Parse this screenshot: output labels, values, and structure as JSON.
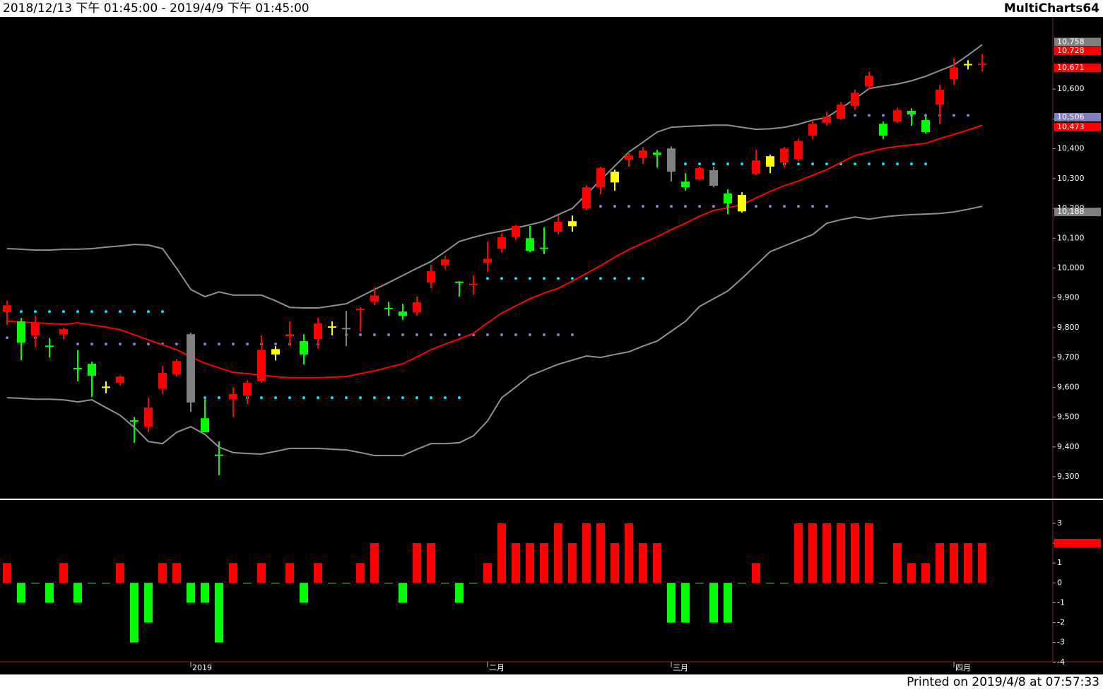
{
  "header": {
    "range": "2018/12/13 下午 01:45:00 - 2019/4/9 下午 01:45:00",
    "brand": "MultiCharts64"
  },
  "footer": "Printed on 2019/4/8 at 07:57:33",
  "chart_data": [
    {
      "type": "candlestick",
      "categories": [
        null,
        null,
        null,
        null,
        null,
        null,
        null,
        null,
        null,
        null,
        null,
        null,
        null,
        "2019",
        null,
        null,
        null,
        null,
        null,
        null,
        null,
        null,
        null,
        null,
        null,
        null,
        null,
        null,
        null,
        null,
        null,
        null,
        null,
        null,
        "二月",
        null,
        null,
        null,
        null,
        null,
        null,
        null,
        null,
        null,
        null,
        null,
        null,
        "三月",
        null,
        null,
        null,
        null,
        null,
        null,
        null,
        null,
        null,
        null,
        null,
        null,
        null,
        null,
        null,
        null,
        null,
        null,
        null,
        "四月",
        null,
        null
      ],
      "open": [
        9852,
        9821,
        9774,
        9740,
        9778,
        9665,
        9679,
        9600,
        9615,
        9487,
        9467,
        9595,
        9643,
        9778,
        9496,
        9372,
        9560,
        9572,
        9620,
        9710,
        9771,
        9755,
        9762,
        9800,
        9797,
        9858,
        9887,
        9864,
        9854,
        9851,
        9951,
        10010,
        9952,
        9942,
        10017,
        10065,
        10105,
        10100,
        10066,
        10122,
        10140,
        10200,
        10271,
        10287,
        10363,
        10370,
        10387,
        10401,
        10290,
        10297,
        10328,
        10250,
        10245,
        10316,
        10340,
        10354,
        10366,
        10444,
        10486,
        10501,
        10543,
        10609,
        10484,
        10491,
        10527,
        10496,
        10548,
        10633,
        10680,
        10681
      ],
      "high": [
        9891,
        9833,
        9840,
        9765,
        9800,
        9725,
        9686,
        9620,
        9640,
        9500,
        9565,
        9672,
        9695,
        9783,
        9560,
        9418,
        9600,
        9624,
        9774,
        9738,
        9821,
        9778,
        9833,
        9821,
        9856,
        9868,
        9935,
        9887,
        9880,
        9904,
        10010,
        10041,
        9956,
        9975,
        10089,
        10117,
        10145,
        10141,
        10136,
        10176,
        10176,
        10278,
        10340,
        10330,
        10389,
        10406,
        10396,
        10408,
        10318,
        10340,
        10340,
        10264,
        10254,
        10396,
        10380,
        10406,
        10434,
        10496,
        10524,
        10557,
        10598,
        10659,
        10491,
        10538,
        10536,
        10512,
        10614,
        10704,
        10697,
        10718
      ],
      "low": [
        9809,
        9691,
        9735,
        9700,
        9760,
        9620,
        9567,
        9580,
        9605,
        9414,
        9449,
        9577,
        9636,
        9518,
        9449,
        9305,
        9501,
        9544,
        9615,
        9690,
        9738,
        9676,
        9731,
        9774,
        9738,
        9785,
        9875,
        9840,
        9826,
        9840,
        9932,
        9996,
        9904,
        9911,
        9987,
        10051,
        10093,
        10053,
        10046,
        10112,
        10122,
        10193,
        10247,
        10259,
        10340,
        10349,
        10337,
        10290,
        10259,
        10295,
        10271,
        10181,
        10186,
        10311,
        10318,
        10337,
        10358,
        10432,
        10477,
        10496,
        10531,
        10598,
        10432,
        10486,
        10477,
        10451,
        10482,
        10614,
        10666,
        10659
      ],
      "close": [
        9875,
        9750,
        9814,
        9735,
        9795,
        9660,
        9639,
        9598,
        9636,
        9485,
        9532,
        9648,
        9688,
        9549,
        9449,
        9370,
        9577,
        9615,
        9726,
        9728,
        9778,
        9710,
        9814,
        9802,
        9797,
        9861,
        9908,
        9862,
        9840,
        9885,
        9989,
        10029,
        9950,
        9945,
        10031,
        10103,
        10141,
        10058,
        10064,
        10155,
        10157,
        10271,
        10335,
        10323,
        10377,
        10394,
        10380,
        10323,
        10271,
        10335,
        10276,
        10216,
        10190,
        10361,
        10375,
        10401,
        10425,
        10484,
        10508,
        10548,
        10588,
        10645,
        10444,
        10529,
        10515,
        10456,
        10598,
        10673,
        10682,
        10683
      ],
      "candle_colors": [
        "red",
        "lime",
        "red",
        "lime",
        "red",
        "lime",
        "lime",
        "yellow",
        "red",
        "lime",
        "red",
        "red",
        "red",
        "gray",
        "lime",
        "lime",
        "red",
        "red",
        "red",
        "yellow",
        "red",
        "lime",
        "red",
        "yellow",
        "gray",
        "red",
        "red",
        "lime",
        "lime",
        "red",
        "red",
        "red",
        "lime",
        "red",
        "red",
        "red",
        "red",
        "lime",
        "lime",
        "red",
        "yellow",
        "red",
        "red",
        "yellow",
        "red",
        "red",
        "lime",
        "gray",
        "lime",
        "red",
        "gray",
        "lime",
        "yellow",
        "red",
        "yellow",
        "red",
        "red",
        "red",
        "red",
        "red",
        "red",
        "red",
        "lime",
        "red",
        "lime",
        "lime",
        "red",
        "red",
        "yellow",
        "red"
      ],
      "series": [
        {
          "color": "#909090",
          "values": [
            10065,
            10063,
            10060,
            10060,
            10063,
            10063,
            10065,
            10070,
            10074,
            10079,
            10077,
            10065,
            9999,
            9928,
            9904,
            9920,
            9909,
            9909,
            9909,
            9890,
            9868,
            9866,
            9866,
            9873,
            9880,
            9904,
            9928,
            9951,
            9975,
            9999,
            10022,
            10055,
            10089,
            10103,
            10115,
            10124,
            10134,
            10145,
            10157,
            10179,
            10200,
            10247,
            10295,
            10342,
            10389,
            10422,
            10456,
            10472,
            10475,
            10477,
            10479,
            10479,
            10472,
            10465,
            10467,
            10472,
            10482,
            10496,
            10505,
            10536,
            10567,
            10602,
            10610,
            10617,
            10628,
            10643,
            10662,
            10681,
            10714,
            10749
          ]
        },
        {
          "color": "#909090",
          "values": [
            9565,
            9563,
            9560,
            9560,
            9558,
            9551,
            9558,
            9532,
            9506,
            9466,
            9418,
            9411,
            9449,
            9468,
            9442,
            9399,
            9381,
            9378,
            9376,
            9385,
            9395,
            9395,
            9395,
            9392,
            9390,
            9381,
            9371,
            9371,
            9371,
            9392,
            9411,
            9411,
            9414,
            9437,
            9487,
            9565,
            9601,
            9639,
            9658,
            9677,
            9691,
            9705,
            9700,
            9710,
            9719,
            9738,
            9755,
            9788,
            9821,
            9871,
            9897,
            9923,
            9965,
            10010,
            10055,
            10074,
            10093,
            10112,
            10150,
            10162,
            10171,
            10164,
            10171,
            10176,
            10179,
            10181,
            10183,
            10188,
            10197,
            10207
          ]
        },
        {
          "color": "#ff0000",
          "values": [
            9821,
            9819,
            9816,
            9814,
            9811,
            9816,
            9809,
            9802,
            9793,
            9776,
            9759,
            9743,
            9726,
            9702,
            9681,
            9665,
            9650,
            9646,
            9641,
            9636,
            9632,
            9632,
            9632,
            9634,
            9636,
            9646,
            9655,
            9667,
            9679,
            9702,
            9726,
            9745,
            9762,
            9781,
            9816,
            9849,
            9873,
            9897,
            9916,
            9932,
            9956,
            9982,
            10008,
            10036,
            10062,
            10084,
            10105,
            10129,
            10150,
            10174,
            10193,
            10202,
            10212,
            10235,
            10257,
            10276,
            10292,
            10311,
            10330,
            10354,
            10377,
            10389,
            10401,
            10408,
            10413,
            10418,
            10434,
            10448,
            10463,
            10479
          ]
        }
      ],
      "levels": [
        {
          "value": 9854,
          "from": 0,
          "to": 12,
          "color": "#00e5ff"
        },
        {
          "value": 9766,
          "from": 0,
          "to": 3,
          "color": "#8080d0"
        },
        {
          "value": 9745,
          "from": 5,
          "to": 23,
          "color": "#8080d0"
        },
        {
          "value": 9776,
          "from": 24,
          "to": 41,
          "color": "#8080d0"
        },
        {
          "value": 9565,
          "from": 13,
          "to": 33,
          "color": "#00e5ff"
        },
        {
          "value": 9965,
          "from": 34,
          "to": 46,
          "color": "#00e5ff"
        },
        {
          "value": 10207,
          "from": 42,
          "to": 59,
          "color": "#8080d0"
        },
        {
          "value": 10349,
          "from": 47,
          "to": 66,
          "color": "#00e5ff"
        },
        {
          "value": 10512,
          "from": 59,
          "to": 69,
          "color": "#8080d0"
        }
      ],
      "price_tags": [
        {
          "value": 10758,
          "label": "10,758",
          "color": "#808080"
        },
        {
          "value": 10728,
          "label": "10,728",
          "color": "#ff0000"
        },
        {
          "value": 10671,
          "label": "10,671",
          "color": "#ff0000"
        },
        {
          "value": 10506,
          "label": "10,506",
          "color": "#8080c0"
        },
        {
          "value": 10473,
          "label": "10,473",
          "color": "#ff0000"
        },
        {
          "value": 10188,
          "label": "10,188",
          "color": "#808080"
        }
      ],
      "ylim": [
        9229,
        10842
      ],
      "yticks": [
        {
          "value": 9300,
          "label": "9,300"
        },
        {
          "value": 9400,
          "label": "9,400"
        },
        {
          "value": 9500,
          "label": "9,500"
        },
        {
          "value": 9600,
          "label": "9,600"
        },
        {
          "value": 9700,
          "label": "9,700"
        },
        {
          "value": 9800,
          "label": "9,800"
        },
        {
          "value": 9900,
          "label": "9,900"
        },
        {
          "value": 10000,
          "label": "10,000"
        },
        {
          "value": 10100,
          "label": "10,100"
        },
        {
          "value": 10200,
          "label": "10,200"
        },
        {
          "value": 10300,
          "label": "10,300"
        },
        {
          "value": 10400,
          "label": "10,400"
        },
        {
          "value": 10500,
          "label": "10,500"
        },
        {
          "value": 10600,
          "label": "10,600"
        }
      ]
    },
    {
      "type": "bar",
      "values": [
        1,
        -1,
        0,
        -1,
        1,
        -1,
        0,
        0,
        1,
        -3,
        -2,
        1,
        1,
        -1,
        -1,
        -3,
        1,
        0,
        1,
        0,
        1,
        -1,
        1,
        0,
        0,
        1,
        2,
        0,
        -1,
        2,
        2,
        0,
        -1,
        0,
        1,
        3,
        2,
        2,
        2,
        3,
        2,
        3,
        3,
        2,
        3,
        2,
        2,
        -2,
        -2,
        0,
        -2,
        -2,
        0,
        1,
        0,
        0,
        3,
        3,
        3,
        3,
        3,
        3,
        0,
        2,
        1,
        1,
        2,
        2,
        2,
        2
      ],
      "positive_color": "#ff0000",
      "negative_color": "#00ff00",
      "price_tags": [
        {
          "value": 2,
          "color": "#ff0000"
        }
      ],
      "ylim": [
        -3.9,
        4.1
      ],
      "yticks": [
        -4,
        -3,
        -2,
        -1,
        0,
        1,
        2,
        3
      ]
    }
  ]
}
